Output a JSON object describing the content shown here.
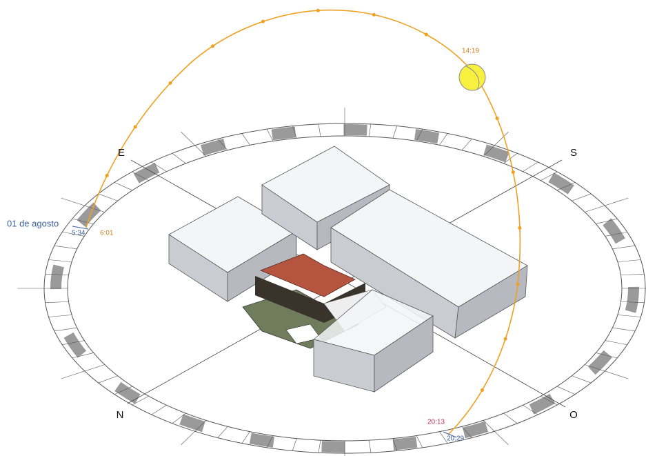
{
  "compass": {
    "east": "E",
    "south": "S",
    "north": "N",
    "west": "O"
  },
  "date_label": "01 de agosto",
  "times": {
    "sunrise_marker": "5:34",
    "first_hour": "6:01",
    "current": "14:19",
    "last_hour": "20:13",
    "sunset_marker": "20:29"
  }
}
